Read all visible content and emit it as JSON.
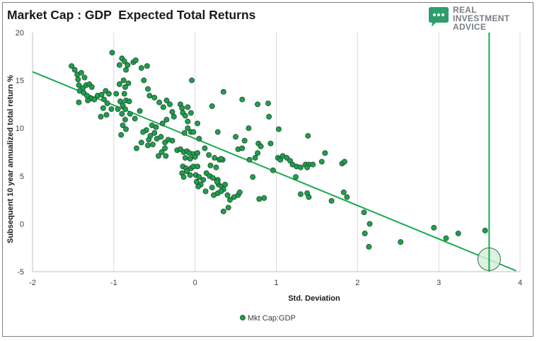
{
  "header": {
    "title": "Market Cap : GDP  Expected Total Returns"
  },
  "logo": {
    "line1": "REAL",
    "line2": "INVESTMENT",
    "line3": "ADVICE",
    "icon": "chat-bubble-icon",
    "color": "#7a7f84",
    "icon_color": "#2e9e6c"
  },
  "chart_data": {
    "type": "scatter",
    "xlabel": "Std. Deviation",
    "ylabel": "Subsequent 10 year annualized total return %",
    "xlim": [
      -2,
      4
    ],
    "ylim": [
      -5,
      20
    ],
    "xticks": [
      -2,
      -1,
      0,
      1,
      2,
      3,
      4
    ],
    "yticks": [
      -5,
      0,
      5,
      10,
      15,
      20
    ],
    "grid": "vertical",
    "legend_position": "bottom",
    "series": [
      {
        "name": "Mkt Cap:GDP",
        "color": "#1e9e4f",
        "points": [
          [
            -1.52,
            16.5
          ],
          [
            -1.48,
            16.1
          ],
          [
            -1.45,
            15.6
          ],
          [
            -1.44,
            15.1
          ],
          [
            -1.4,
            15.8
          ],
          [
            -1.36,
            15.3
          ],
          [
            -1.43,
            14.5
          ],
          [
            -1.38,
            14.2
          ],
          [
            -1.34,
            14.5
          ],
          [
            -1.3,
            14.6
          ],
          [
            -1.42,
            13.9
          ],
          [
            -1.37,
            13.7
          ],
          [
            -1.33,
            13.4
          ],
          [
            -1.28,
            13.1
          ],
          [
            -1.24,
            13.0
          ],
          [
            -1.43,
            12.7
          ],
          [
            -1.32,
            12.9
          ],
          [
            -1.27,
            14.3
          ],
          [
            -1.2,
            13.4
          ],
          [
            -1.15,
            13.5
          ],
          [
            -1.1,
            13.9
          ],
          [
            -1.06,
            13.6
          ],
          [
            -1.12,
            13.0
          ],
          [
            -1.08,
            12.6
          ],
          [
            -1.03,
            12.0
          ],
          [
            -1.13,
            12.1
          ],
          [
            -1.09,
            11.4
          ],
          [
            -1.16,
            11.2
          ],
          [
            -1.02,
            17.9
          ],
          [
            -0.93,
            16.6
          ],
          [
            -0.9,
            17.3
          ],
          [
            -0.87,
            17.0
          ],
          [
            -0.83,
            16.6
          ],
          [
            -0.85,
            16.1
          ],
          [
            -0.76,
            16.9
          ],
          [
            -0.73,
            17.1
          ],
          [
            -0.88,
            15.0
          ],
          [
            -0.93,
            14.6
          ],
          [
            -0.86,
            14.3
          ],
          [
            -0.82,
            14.7
          ],
          [
            -0.97,
            13.6
          ],
          [
            -0.92,
            12.8
          ],
          [
            -0.89,
            12.4
          ],
          [
            -0.86,
            12.0
          ],
          [
            -0.95,
            12.0
          ],
          [
            -0.9,
            11.5
          ],
          [
            -0.86,
            10.9
          ],
          [
            -0.89,
            10.3
          ],
          [
            -0.91,
            9.3
          ],
          [
            -0.85,
            9.9
          ],
          [
            -0.8,
            11.5
          ],
          [
            -0.74,
            11.0
          ],
          [
            -0.68,
            11.8
          ],
          [
            -0.87,
            13.6
          ],
          [
            -0.85,
            12.9
          ],
          [
            -0.81,
            12.8
          ],
          [
            -0.66,
            16.3
          ],
          [
            -0.59,
            16.5
          ],
          [
            -0.63,
            15.0
          ],
          [
            -0.58,
            14.1
          ],
          [
            -0.56,
            13.4
          ],
          [
            -0.5,
            13.2
          ],
          [
            -0.44,
            12.7
          ],
          [
            -0.39,
            12.2
          ],
          [
            -0.35,
            12.9
          ],
          [
            -0.31,
            12.5
          ],
          [
            -0.28,
            11.7
          ],
          [
            -0.26,
            11.2
          ],
          [
            -0.35,
            10.9
          ],
          [
            -0.4,
            10.5
          ],
          [
            -0.53,
            10.3
          ],
          [
            -0.48,
            10.1
          ],
          [
            -0.5,
            9.5
          ],
          [
            -0.55,
            9.2
          ],
          [
            -0.6,
            9.8
          ],
          [
            -0.64,
            9.6
          ],
          [
            -0.57,
            8.8
          ],
          [
            -0.52,
            8.3
          ],
          [
            -0.47,
            8.9
          ],
          [
            -0.42,
            9.1
          ],
          [
            -0.37,
            8.5
          ],
          [
            -0.33,
            8.8
          ],
          [
            -0.28,
            8.7
          ],
          [
            -0.37,
            7.9
          ],
          [
            -0.41,
            7.5
          ],
          [
            -0.36,
            7.1
          ],
          [
            -0.45,
            7.1
          ],
          [
            -0.58,
            8.2
          ],
          [
            -0.66,
            8.5
          ],
          [
            -0.72,
            7.9
          ],
          [
            -0.18,
            12.5
          ],
          [
            -0.22,
            7.7
          ],
          [
            -0.18,
            7.8
          ],
          [
            -0.14,
            7.5
          ],
          [
            -0.1,
            7.6
          ],
          [
            -0.07,
            7.4
          ],
          [
            -0.02,
            7.3
          ],
          [
            0.03,
            7.4
          ],
          [
            -0.12,
            6.9
          ],
          [
            -0.06,
            6.8
          ],
          [
            0.0,
            7.0
          ],
          [
            -0.15,
            6.0
          ],
          [
            -0.11,
            5.8
          ],
          [
            -0.05,
            5.8
          ],
          [
            -0.02,
            6.0
          ],
          [
            0.03,
            6.0
          ],
          [
            -0.16,
            5.3
          ],
          [
            -0.1,
            5.5
          ],
          [
            -0.14,
            4.9
          ],
          [
            -0.06,
            5.1
          ],
          [
            0.01,
            5.1
          ],
          [
            0.05,
            4.9
          ],
          [
            0.1,
            4.6
          ],
          [
            0.07,
            4.1
          ],
          [
            0.02,
            4.4
          ],
          [
            0.04,
            3.9
          ],
          [
            -0.13,
            9.5
          ],
          [
            -0.09,
            10.0
          ],
          [
            -0.05,
            9.6
          ],
          [
            -0.02,
            9.6
          ],
          [
            -0.15,
            11.6
          ],
          [
            -0.12,
            11.3
          ],
          [
            -0.09,
            10.7
          ],
          [
            -0.05,
            11.6
          ],
          [
            -0.16,
            12.1
          ],
          [
            -0.09,
            12.2
          ],
          [
            0.03,
            10.5
          ],
          [
            0.05,
            8.9
          ],
          [
            -0.04,
            15.0
          ],
          [
            0.21,
            12.3
          ],
          [
            0.35,
            13.8
          ],
          [
            0.12,
            7.9
          ],
          [
            0.17,
            7.2
          ],
          [
            0.24,
            6.9
          ],
          [
            0.3,
            6.7
          ],
          [
            0.34,
            6.7
          ],
          [
            0.19,
            6.1
          ],
          [
            0.26,
            5.9
          ],
          [
            0.14,
            5.3
          ],
          [
            0.18,
            5.0
          ],
          [
            0.22,
            4.8
          ],
          [
            0.28,
            4.6
          ],
          [
            0.29,
            4.1
          ],
          [
            0.33,
            3.9
          ],
          [
            0.37,
            4.1
          ],
          [
            0.35,
            3.6
          ],
          [
            0.28,
            3.2
          ],
          [
            0.4,
            3.0
          ],
          [
            0.32,
            3.4
          ],
          [
            0.35,
            1.3
          ],
          [
            0.41,
            1.7
          ],
          [
            0.43,
            2.5
          ],
          [
            0.48,
            2.8
          ],
          [
            0.53,
            3.0
          ],
          [
            0.55,
            3.3
          ],
          [
            0.53,
            7.8
          ],
          [
            0.58,
            7.9
          ],
          [
            0.61,
            8.7
          ],
          [
            0.67,
            6.7
          ],
          [
            0.71,
            4.9
          ],
          [
            0.74,
            6.9
          ],
          [
            0.78,
            8.4
          ],
          [
            0.81,
            8.1
          ],
          [
            0.77,
            7.4
          ],
          [
            0.66,
            10.0
          ],
          [
            0.5,
            9.1
          ],
          [
            0.28,
            9.6
          ],
          [
            0.13,
            3.4
          ],
          [
            0.21,
            3.8
          ],
          [
            0.27,
            4.4
          ],
          [
            0.23,
            3.0
          ],
          [
            0.32,
            6.8
          ],
          [
            0.58,
            13.0
          ],
          [
            0.77,
            12.5
          ],
          [
            0.9,
            12.6
          ],
          [
            0.91,
            11.2
          ],
          [
            1.03,
            9.9
          ],
          [
            1.02,
            6.9
          ],
          [
            1.05,
            6.7
          ],
          [
            1.08,
            7.1
          ],
          [
            1.13,
            6.9
          ],
          [
            1.17,
            6.6
          ],
          [
            1.2,
            6.2
          ],
          [
            1.25,
            6.0
          ],
          [
            1.3,
            5.9
          ],
          [
            1.36,
            6.2
          ],
          [
            1.4,
            6.2
          ],
          [
            1.45,
            6.2
          ],
          [
            1.38,
            5.9
          ],
          [
            1.24,
            4.9
          ],
          [
            1.3,
            3.1
          ],
          [
            1.38,
            3.2
          ],
          [
            1.4,
            2.8
          ],
          [
            1.56,
            6.5
          ],
          [
            1.6,
            7.4
          ],
          [
            1.39,
            9.2
          ],
          [
            1.68,
            2.4
          ],
          [
            1.81,
            6.3
          ],
          [
            1.84,
            6.5
          ],
          [
            1.83,
            3.3
          ],
          [
            1.87,
            2.8
          ],
          [
            0.85,
            2.7
          ],
          [
            0.79,
            2.6
          ],
          [
            0.93,
            8.4
          ],
          [
            0.96,
            5.6
          ]
        ]
      },
      {
        "name": "",
        "color": "#1e9e4f",
        "points": [
          [
            2.08,
            1.2
          ],
          [
            2.15,
            0.0
          ],
          [
            2.09,
            -1.0
          ],
          [
            2.14,
            -2.4
          ],
          [
            2.53,
            -1.9
          ],
          [
            2.94,
            -0.4
          ],
          [
            3.09,
            -1.5
          ],
          [
            3.24,
            -1.0
          ],
          [
            3.57,
            -0.7
          ]
        ]
      }
    ],
    "trendline": {
      "x": [
        -2,
        3.95
      ],
      "y": [
        15.9,
        -4.9
      ],
      "color": "#1aaa4f"
    },
    "marker_line": {
      "x": 3.62,
      "y_top": 20,
      "y_bottom": -5,
      "color": "#1aaa4f"
    },
    "highlight_circle": {
      "x": 3.62,
      "y": -3.7,
      "fill": "#d7efd9",
      "stroke": "#3a6a45"
    }
  }
}
